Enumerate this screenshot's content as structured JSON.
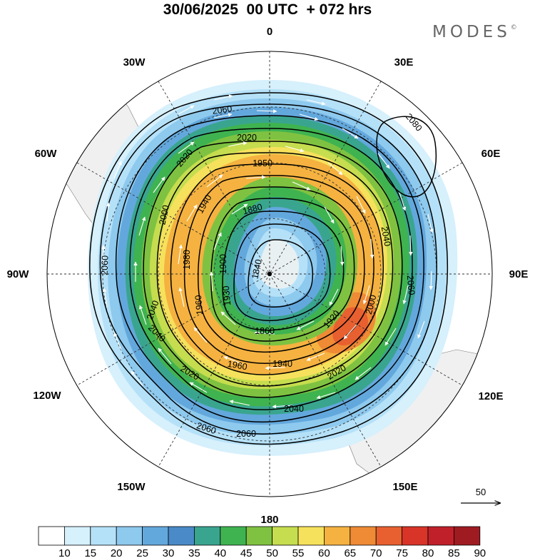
{
  "title": "30/06/2025  00 UTC  + 072 hrs",
  "logo": "MODES",
  "logo_mark": "©",
  "map": {
    "projection": "south-polar-stereographic",
    "longitude_labels": {
      "top": "0",
      "top_right": "30E",
      "upper_right": "60E",
      "right": "90E",
      "lower_right": "120E",
      "bottom_right": "150E",
      "bottom": "180",
      "bottom_left": "150W",
      "lower_left": "120W",
      "left": "90W",
      "upper_left": "60W",
      "top_left": "30W"
    },
    "contour_labels": [
      "2060",
      "2020",
      "1950",
      "2020",
      "2000",
      "1940",
      "1980",
      "1900",
      "1880",
      "1840",
      "1960",
      "1930",
      "2040",
      "2080",
      "2040",
      "2060",
      "2000",
      "1920",
      "1860",
      "2060",
      "2040",
      "1960",
      "1940",
      "2020",
      "2020",
      "2040",
      "2060",
      "2060"
    ],
    "vector_reference": "50"
  },
  "colorbar": {
    "tick_labels": [
      "10",
      "15",
      "20",
      "25",
      "30",
      "35",
      "40",
      "45",
      "50",
      "55",
      "60",
      "65",
      "70",
      "75",
      "80",
      "85",
      "90"
    ],
    "colors": [
      "#ffffff",
      "#d6f0fc",
      "#b5e1f8",
      "#8ec9ee",
      "#63a8dd",
      "#4a8ac8",
      "#3aa58f",
      "#3fb350",
      "#7fc241",
      "#c5dd4e",
      "#f6e15c",
      "#f5b240",
      "#ef8a35",
      "#e8602f",
      "#d83428",
      "#c0202a",
      "#9e1b22"
    ]
  }
}
